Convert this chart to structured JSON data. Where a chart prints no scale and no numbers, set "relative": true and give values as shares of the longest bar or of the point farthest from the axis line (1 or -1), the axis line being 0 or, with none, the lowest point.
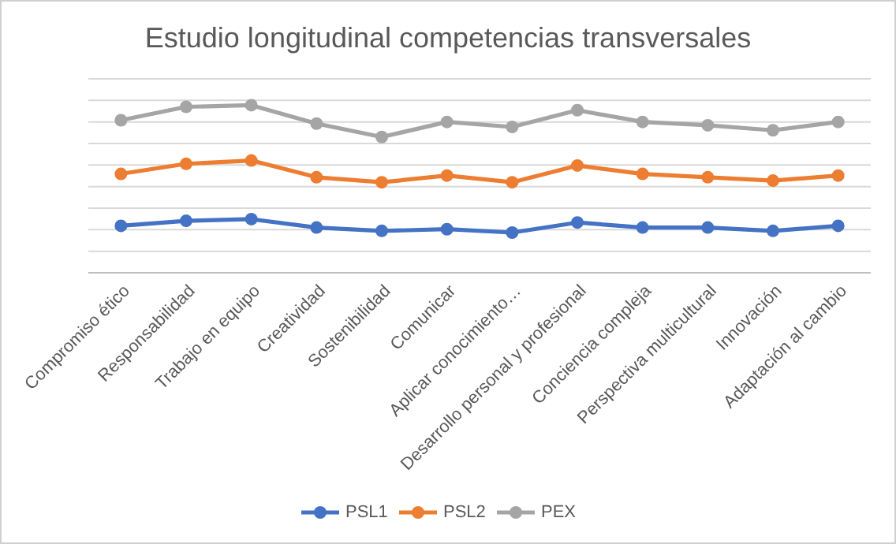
{
  "chart_data": {
    "type": "line",
    "title": "Estudio longitudinal competencias transversales",
    "relative": true,
    "grid": "y",
    "legend": "bottom",
    "marker": "circle",
    "line_style": "solid",
    "categories": [
      "Compromiso ético",
      "Responsabilidad",
      "Trabajo en equipo",
      "Creatividad",
      "Sostenibilidad",
      "Comunicar",
      "Aplicar conocimiento…",
      "Desarrollo personal y profesional",
      "Conciencia compleja",
      "Perspectiva multicultural",
      "Innovación",
      "Adaptación al cambio"
    ],
    "series": [
      {
        "name": "PSL1",
        "color": "#4472c4",
        "values": [
          0.28,
          0.31,
          0.32,
          0.27,
          0.25,
          0.26,
          0.24,
          0.3,
          0.27,
          0.27,
          0.25,
          0.28
        ]
      },
      {
        "name": "PSL2",
        "color": "#ed7d31",
        "values": [
          0.59,
          0.65,
          0.67,
          0.57,
          0.54,
          0.58,
          0.54,
          0.64,
          0.59,
          0.57,
          0.55,
          0.58
        ]
      },
      {
        "name": "PEX",
        "color": "#a5a5a5",
        "values": [
          0.91,
          0.99,
          1,
          0.89,
          0.81,
          0.9,
          0.87,
          0.97,
          0.9,
          0.88,
          0.85,
          0.9
        ]
      }
    ]
  }
}
